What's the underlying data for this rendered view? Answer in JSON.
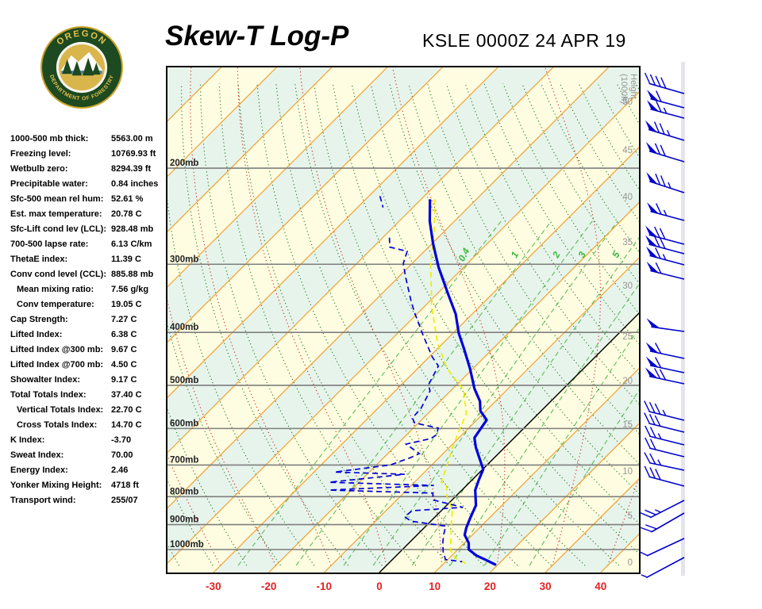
{
  "header": {
    "title": "Skew-T Log-P",
    "station_time": "KSLE 0000Z 24 APR 19"
  },
  "logo": {
    "top_text": "OREGON",
    "bottom_text": "DEPARTMENT OF FORESTRY"
  },
  "stats": {
    "rows": [
      {
        "label": "1000-500 mb thick:",
        "value": "5563.00 m",
        "indent": false
      },
      {
        "label": "Freezing level:",
        "value": "10769.93 ft",
        "indent": false
      },
      {
        "label": "Wetbulb zero:",
        "value": "8294.39 ft",
        "indent": false
      },
      {
        "label": "Precipitable water:",
        "value": "0.84 inches",
        "indent": false
      },
      {
        "label": "Sfc-500 mean rel hum:",
        "value": "52.61 %",
        "indent": false
      },
      {
        "label": "Est. max temperature:",
        "value": "20.78 C",
        "indent": false
      },
      {
        "label": "Sfc-Lift cond lev (LCL):",
        "value": "928.48 mb",
        "indent": false
      },
      {
        "label": "700-500 lapse rate:",
        "value": "6.13 C/km",
        "indent": false
      },
      {
        "label": "ThetaE index:",
        "value": "11.39 C",
        "indent": false
      },
      {
        "label": "Conv cond level (CCL):",
        "value": "885.88 mb",
        "indent": false
      },
      {
        "label": "Mean mixing ratio:",
        "value": "7.56 g/kg",
        "indent": true
      },
      {
        "label": "Conv temperature:",
        "value": "19.05 C",
        "indent": true
      },
      {
        "label": "Cap Strength:",
        "value": "7.27 C",
        "indent": false
      },
      {
        "label": "Lifted Index:",
        "value": "6.38 C",
        "indent": false
      },
      {
        "label": "Lifted Index @300 mb:",
        "value": "9.67 C",
        "indent": false
      },
      {
        "label": "Lifted Index @700 mb:",
        "value": "4.50 C",
        "indent": false
      },
      {
        "label": "Showalter Index:",
        "value": "9.17 C",
        "indent": false
      },
      {
        "label": "Total Totals Index:",
        "value": "37.40 C",
        "indent": false
      },
      {
        "label": "Vertical Totals Index:",
        "value": "22.70 C",
        "indent": true
      },
      {
        "label": "Cross Totals Index:",
        "value": "14.70 C",
        "indent": true
      },
      {
        "label": "K Index:",
        "value": "-3.70",
        "indent": false
      },
      {
        "label": "Sweat Index:",
        "value": "70.00",
        "indent": false
      },
      {
        "label": "Energy Index:",
        "value": "2.46",
        "indent": false
      },
      {
        "label": "Yonker Mixing Height:",
        "value": "4718 ft",
        "indent": false
      },
      {
        "label": "Transport wind:",
        "value": "255/07",
        "indent": false
      }
    ]
  },
  "chart_data": {
    "type": "skewt_log_p_sounding",
    "station": "KSLE",
    "valid_time": "0000Z 24 APR 19",
    "pressure_axis": {
      "levels_mb": [
        200,
        300,
        400,
        500,
        600,
        700,
        800,
        900,
        1000
      ],
      "unit": "mb",
      "label_color": "#222222"
    },
    "temp_axis": {
      "ticks_c": [
        -30,
        -20,
        -10,
        0,
        10,
        20,
        30,
        40
      ],
      "color": "#e32222"
    },
    "height_axis": {
      "title": "Height (1000ft)",
      "color": "#969696",
      "ticks": [
        [
          50,
          43
        ],
        [
          45,
          104
        ],
        [
          40,
          163
        ],
        [
          35,
          220
        ],
        [
          30,
          275
        ],
        [
          25,
          339
        ],
        [
          20,
          395
        ],
        [
          15,
          450
        ],
        [
          10,
          509
        ],
        [
          5,
          565
        ],
        [
          0,
          624
        ]
      ]
    },
    "background_bands": [
      "#fffde1",
      "#e7f4eb"
    ],
    "isotherms": {
      "step_c": 10,
      "color": "#f0a032",
      "zero_line_color": "#000000"
    },
    "dry_adiabats": {
      "theta_c_min": -60,
      "theta_c_max": 150,
      "step_c": 6,
      "color": "#1f7a1f"
    },
    "moist_adiabats": {
      "start_c_min": -140,
      "start_c_max": 40,
      "step_c": 10,
      "color": "#cc2222"
    },
    "mixing_ratio": {
      "lines_gkg": [
        0.4,
        1,
        2,
        3,
        5,
        8,
        12,
        20
      ],
      "labels": [
        "0.4",
        "1",
        "2",
        "3",
        "5"
      ],
      "label_pressure_mb": 290,
      "line_color": "#5abe5a",
      "label_color": "#3cb83c"
    },
    "isobar_color": "#7e7e7e",
    "traces": {
      "temperature": {
        "color": "#0000dc",
        "points_mb_c": [
          [
            228,
            -58.4
          ],
          [
            250,
            -54.5
          ],
          [
            275,
            -49.8
          ],
          [
            304,
            -44.5
          ],
          [
            340,
            -38
          ],
          [
            370,
            -33
          ],
          [
            401,
            -29
          ],
          [
            430,
            -25
          ],
          [
            467,
            -20.4
          ],
          [
            507,
            -16.1
          ],
          [
            535,
            -12.8
          ],
          [
            557,
            -11
          ],
          [
            579,
            -8.2
          ],
          [
            624,
            -7.2
          ],
          [
            650,
            -5.2
          ],
          [
            673,
            -3.2
          ],
          [
            713,
            0.1
          ],
          [
            745,
            1.2
          ],
          [
            778,
            2.4
          ],
          [
            830,
            5.3
          ],
          [
            870,
            6.4
          ],
          [
            912,
            7.6
          ],
          [
            940,
            8.6
          ],
          [
            973,
            10.8
          ],
          [
            1000,
            12
          ],
          [
            1026,
            14.5
          ],
          [
            1045,
            17
          ],
          [
            1067,
            19.7
          ]
        ]
      },
      "dewpoint": {
        "color": "#0000dc",
        "segments_mb_c": [
          [
            [
              225,
              -68
            ],
            [
              236,
              -65.4
            ]
          ],
          [
            [
              268,
              -58.8
            ],
            [
              279,
              -57
            ],
            [
              284,
              -53.1
            ],
            [
              299,
              -51.6
            ],
            [
              318,
              -48.5
            ],
            [
              351,
              -43.3
            ],
            [
              369,
              -40.5
            ],
            [
              405,
              -35
            ],
            [
              444,
              -29.4
            ],
            [
              461,
              -26.7
            ],
            [
              499,
              -25.1
            ],
            [
              512,
              -23.7
            ],
            [
              551,
              -22.2
            ],
            [
              574,
              -22
            ],
            [
              586,
              -20.7
            ],
            [
              599,
              -15.5
            ],
            [
              616,
              -14.6
            ],
            [
              626,
              -14.9
            ],
            [
              641,
              -18.4
            ],
            [
              667,
              -14.3
            ],
            [
              679,
              -15.2
            ],
            [
              700,
              -17.5
            ],
            [
              721,
              -26.3
            ],
            [
              728,
              -13.2
            ],
            [
              753,
              -25.4
            ],
            [
              763,
              -5.9
            ],
            [
              778,
              -24
            ],
            [
              788,
              -4.7
            ],
            [
              811,
              -3.5
            ],
            [
              837,
              3.3
            ],
            [
              849,
              -5.3
            ],
            [
              871,
              -5.5
            ],
            [
              887,
              -3.6
            ],
            [
              906,
              3.6
            ],
            [
              940,
              4.8
            ],
            [
              975,
              6.2
            ],
            [
              1010,
              7.8
            ],
            [
              1043,
              9.6
            ],
            [
              1053,
              13
            ]
          ]
        ]
      },
      "wetbulb": {
        "color": "#eded05",
        "points_mb_c": [
          [
            228,
            -57.5
          ],
          [
            260,
            -52
          ],
          [
            300,
            -46.5
          ],
          [
            360,
            -38.5
          ],
          [
            420,
            -30.8
          ],
          [
            467,
            -24.5
          ],
          [
            510,
            -17.8
          ],
          [
            564,
            -13
          ],
          [
            600,
            -11.5
          ],
          [
            641,
            -9.8
          ],
          [
            700,
            -7.2
          ],
          [
            752,
            -5.2
          ],
          [
            765,
            -3.5
          ],
          [
            800,
            -1.5
          ],
          [
            846,
            1.9
          ],
          [
            880,
            3.4
          ],
          [
            915,
            5
          ],
          [
            960,
            7
          ],
          [
            1005,
            8.9
          ],
          [
            1035,
            11
          ],
          [
            1060,
            13.9
          ]
        ]
      }
    },
    "winds": {
      "color": "#0000cd",
      "barbs_y_angle_pen_full_half_len": [
        [
          33,
          16,
          0,
          4,
          0,
          46
        ],
        [
          51,
          15,
          1,
          1,
          0,
          44
        ],
        [
          64,
          15,
          1,
          1,
          1,
          44
        ],
        [
          92,
          17,
          1,
          2,
          1,
          47
        ],
        [
          119,
          17,
          1,
          2,
          0,
          46
        ],
        [
          158,
          18,
          1,
          2,
          1,
          46
        ],
        [
          193,
          15,
          1,
          1,
          1,
          44
        ],
        [
          223,
          15,
          1,
          2,
          0,
          46
        ],
        [
          235,
          15,
          1,
          2,
          0,
          46
        ],
        [
          249,
          15,
          1,
          1,
          1,
          45
        ],
        [
          267,
          14,
          1,
          1,
          0,
          44
        ],
        [
          333,
          8,
          1,
          0,
          0,
          42
        ],
        [
          367,
          12,
          1,
          1,
          0,
          44
        ],
        [
          385,
          12,
          1,
          1,
          0,
          44
        ],
        [
          399,
          12,
          1,
          2,
          0,
          45
        ],
        [
          445,
          14,
          0,
          3,
          1,
          46
        ],
        [
          460,
          14,
          0,
          3,
          0,
          46
        ],
        [
          476,
          14,
          0,
          2,
          1,
          45
        ],
        [
          491,
          14,
          0,
          2,
          0,
          45
        ],
        [
          508,
          12,
          0,
          2,
          1,
          45
        ],
        [
          528,
          15,
          0,
          3,
          0,
          46
        ],
        [
          546,
          -27,
          0,
          2,
          1,
          48
        ],
        [
          562,
          -30,
          0,
          2,
          0,
          48
        ],
        [
          594,
          -25,
          0,
          1,
          0,
          52
        ],
        [
          618,
          -28,
          0,
          0,
          1,
          54
        ]
      ]
    }
  }
}
